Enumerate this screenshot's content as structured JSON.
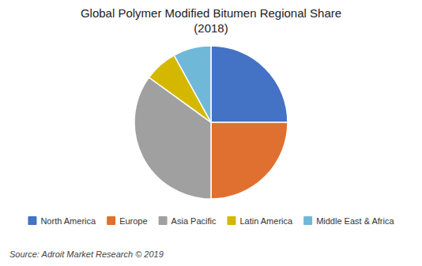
{
  "chart_data": {
    "type": "pie",
    "title": "Global Polymer Modified Bitumen Regional Share\n(2018)",
    "categories": [
      "North America",
      "Europe",
      "Asia Pacific",
      "Latin America",
      "Middle East & Africa"
    ],
    "values": [
      25,
      25,
      35,
      7,
      8
    ],
    "colors": [
      "#4472c4",
      "#e07030",
      "#a0a0a0",
      "#d4b800",
      "#70b8d8"
    ],
    "legend": "bottom",
    "annotations": [
      "Source: Adroit Market Research © 2019"
    ]
  }
}
